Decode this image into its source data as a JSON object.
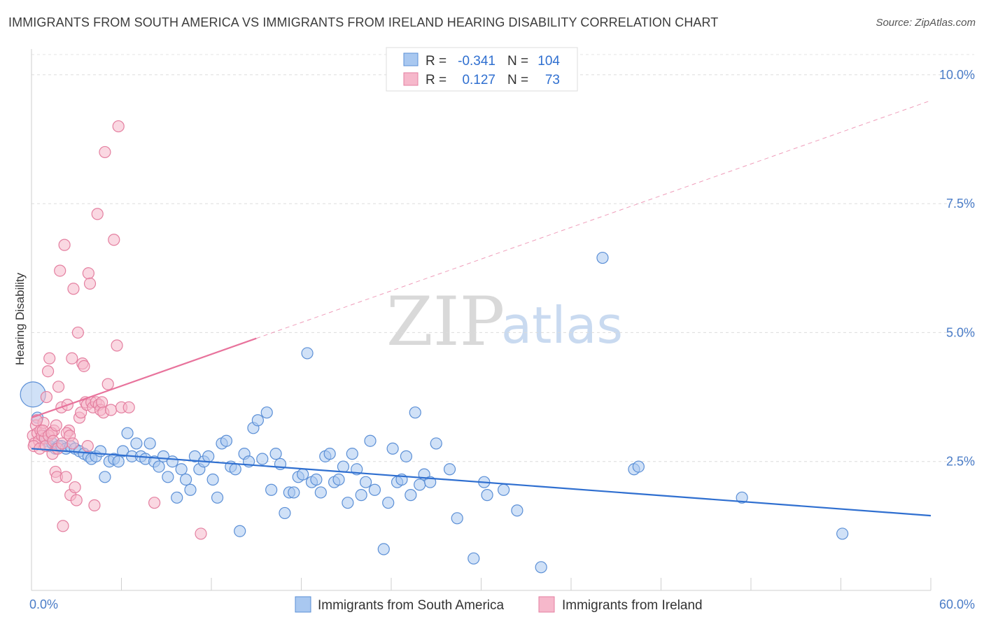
{
  "title": "IMMIGRANTS FROM SOUTH AMERICA VS IMMIGRANTS FROM IRELAND HEARING DISABILITY CORRELATION CHART",
  "source": "Source: ZipAtlas.com",
  "watermark": {
    "zip": "ZIP",
    "atlas": "atlas"
  },
  "stats": {
    "rows": [
      {
        "r_label": "R =",
        "r_value": "-0.341",
        "n_label": "N =",
        "n_value": "104",
        "color": "#a9c8f0",
        "border": "#5b8fd6"
      },
      {
        "r_label": "R =",
        "r_value": "0.127",
        "n_label": "N =",
        "n_value": "73",
        "color": "#f6b8cb",
        "border": "#e47fa0"
      }
    ]
  },
  "chart_data": {
    "type": "scatter",
    "title": "IMMIGRANTS FROM SOUTH AMERICA VS IMMIGRANTS FROM IRELAND HEARING DISABILITY CORRELATION CHART",
    "xlabel": "",
    "ylabel": "Hearing Disability",
    "xlim": [
      0,
      60
    ],
    "ylim": [
      0,
      10.5
    ],
    "x_tick_labels": [
      {
        "value": 0,
        "label": "0.0%"
      },
      {
        "value": 60,
        "label": "60.0%"
      }
    ],
    "y_ticks": [
      {
        "value": 2.5,
        "label": "2.5%"
      },
      {
        "value": 5.0,
        "label": "5.0%"
      },
      {
        "value": 7.5,
        "label": "7.5%"
      },
      {
        "value": 10.0,
        "label": "10.0%"
      }
    ],
    "grid": true,
    "legend_position": "bottom",
    "series": [
      {
        "name": "Immigrants from South America",
        "color": "#a9c8f0",
        "stroke": "#5b8fd6",
        "trend": {
          "x": [
            0,
            60
          ],
          "y": [
            2.75,
            1.45
          ],
          "color": "#2f6fd0"
        },
        "points": [
          [
            0.1,
            3.8
          ],
          [
            0.4,
            3.35
          ],
          [
            0.8,
            3.0
          ],
          [
            1.0,
            2.9
          ],
          [
            1.2,
            2.8
          ],
          [
            1.4,
            2.85
          ],
          [
            1.6,
            2.75
          ],
          [
            1.8,
            2.8
          ],
          [
            2.0,
            2.8
          ],
          [
            2.3,
            2.75
          ],
          [
            2.6,
            2.8
          ],
          [
            2.9,
            2.75
          ],
          [
            3.2,
            2.7
          ],
          [
            3.5,
            2.65
          ],
          [
            3.8,
            2.6
          ],
          [
            4.0,
            2.55
          ],
          [
            4.3,
            2.6
          ],
          [
            4.6,
            2.7
          ],
          [
            4.9,
            2.2
          ],
          [
            5.2,
            2.5
          ],
          [
            5.5,
            2.55
          ],
          [
            5.8,
            2.5
          ],
          [
            6.1,
            2.7
          ],
          [
            6.4,
            3.05
          ],
          [
            6.7,
            2.6
          ],
          [
            7.0,
            2.85
          ],
          [
            7.3,
            2.6
          ],
          [
            7.6,
            2.55
          ],
          [
            7.9,
            2.85
          ],
          [
            8.2,
            2.5
          ],
          [
            8.5,
            2.4
          ],
          [
            8.8,
            2.6
          ],
          [
            9.1,
            2.2
          ],
          [
            9.4,
            2.5
          ],
          [
            9.7,
            1.8
          ],
          [
            10.0,
            2.35
          ],
          [
            10.3,
            2.15
          ],
          [
            10.6,
            1.95
          ],
          [
            10.9,
            2.6
          ],
          [
            11.2,
            2.35
          ],
          [
            11.5,
            2.5
          ],
          [
            11.8,
            2.6
          ],
          [
            12.1,
            2.15
          ],
          [
            12.4,
            1.8
          ],
          [
            12.7,
            2.85
          ],
          [
            13.0,
            2.9
          ],
          [
            13.3,
            2.4
          ],
          [
            13.6,
            2.35
          ],
          [
            13.9,
            1.15
          ],
          [
            14.2,
            2.65
          ],
          [
            14.5,
            2.5
          ],
          [
            14.8,
            3.15
          ],
          [
            15.1,
            3.3
          ],
          [
            15.4,
            2.55
          ],
          [
            15.7,
            3.45
          ],
          [
            16.0,
            1.95
          ],
          [
            16.3,
            2.65
          ],
          [
            16.6,
            2.45
          ],
          [
            16.9,
            1.5
          ],
          [
            17.2,
            1.9
          ],
          [
            17.5,
            1.9
          ],
          [
            17.8,
            2.2
          ],
          [
            18.1,
            2.25
          ],
          [
            18.4,
            4.6
          ],
          [
            18.7,
            2.1
          ],
          [
            19.0,
            2.15
          ],
          [
            19.3,
            1.9
          ],
          [
            19.6,
            2.6
          ],
          [
            19.9,
            2.65
          ],
          [
            20.2,
            2.1
          ],
          [
            20.5,
            2.15
          ],
          [
            20.8,
            2.4
          ],
          [
            21.1,
            1.7
          ],
          [
            21.4,
            2.65
          ],
          [
            21.7,
            2.35
          ],
          [
            22.0,
            1.85
          ],
          [
            22.3,
            2.1
          ],
          [
            22.6,
            2.9
          ],
          [
            22.9,
            1.95
          ],
          [
            23.5,
            0.8
          ],
          [
            23.8,
            1.7
          ],
          [
            24.1,
            2.75
          ],
          [
            24.4,
            2.1
          ],
          [
            24.7,
            2.15
          ],
          [
            25.0,
            2.6
          ],
          [
            25.3,
            1.85
          ],
          [
            25.6,
            3.45
          ],
          [
            25.9,
            2.05
          ],
          [
            26.2,
            2.25
          ],
          [
            26.6,
            2.1
          ],
          [
            27.0,
            2.85
          ],
          [
            27.9,
            2.35
          ],
          [
            28.4,
            1.4
          ],
          [
            29.5,
            0.62
          ],
          [
            30.2,
            2.1
          ],
          [
            30.4,
            1.85
          ],
          [
            31.5,
            1.95
          ],
          [
            32.4,
            1.55
          ],
          [
            34.0,
            0.45
          ],
          [
            38.1,
            6.45
          ],
          [
            40.2,
            2.35
          ],
          [
            40.5,
            2.4
          ],
          [
            47.4,
            1.8
          ],
          [
            54.1,
            1.1
          ]
        ]
      },
      {
        "name": "Immigrants from Ireland",
        "color": "#f6b8cb",
        "stroke": "#e47fa0",
        "trend": {
          "x": [
            0,
            60
          ],
          "y": [
            3.35,
            9.5
          ],
          "solid_until_x": 15.0,
          "color": "#e8739c"
        },
        "points": [
          [
            0.1,
            3.0
          ],
          [
            0.2,
            2.85
          ],
          [
            0.3,
            3.2
          ],
          [
            0.4,
            3.05
          ],
          [
            0.5,
            2.9
          ],
          [
            0.6,
            3.1
          ],
          [
            0.7,
            3.0
          ],
          [
            0.8,
            3.25
          ],
          [
            0.9,
            2.95
          ],
          [
            1.0,
            3.75
          ],
          [
            1.1,
            4.25
          ],
          [
            1.2,
            4.5
          ],
          [
            1.3,
            3.05
          ],
          [
            1.4,
            2.65
          ],
          [
            1.5,
            3.1
          ],
          [
            1.6,
            2.3
          ],
          [
            1.7,
            2.2
          ],
          [
            1.8,
            3.95
          ],
          [
            1.9,
            6.2
          ],
          [
            2.0,
            3.55
          ],
          [
            2.1,
            1.25
          ],
          [
            2.2,
            6.7
          ],
          [
            2.3,
            2.2
          ],
          [
            2.4,
            3.6
          ],
          [
            2.5,
            3.1
          ],
          [
            2.6,
            1.85
          ],
          [
            2.7,
            4.5
          ],
          [
            2.8,
            5.85
          ],
          [
            2.9,
            2.0
          ],
          [
            3.0,
            1.75
          ],
          [
            3.1,
            5.0
          ],
          [
            3.2,
            3.35
          ],
          [
            3.3,
            3.45
          ],
          [
            3.4,
            4.4
          ],
          [
            3.5,
            4.35
          ],
          [
            3.6,
            3.65
          ],
          [
            3.7,
            3.6
          ],
          [
            3.8,
            6.15
          ],
          [
            3.9,
            5.95
          ],
          [
            4.0,
            3.65
          ],
          [
            4.1,
            3.55
          ],
          [
            4.2,
            1.65
          ],
          [
            4.3,
            3.65
          ],
          [
            4.4,
            7.3
          ],
          [
            4.5,
            3.6
          ],
          [
            4.6,
            3.5
          ],
          [
            4.7,
            3.65
          ],
          [
            4.8,
            3.45
          ],
          [
            4.9,
            8.5
          ],
          [
            5.1,
            4.0
          ],
          [
            5.3,
            3.5
          ],
          [
            5.5,
            6.8
          ],
          [
            5.7,
            4.75
          ],
          [
            5.8,
            9.0
          ],
          [
            6.0,
            3.55
          ],
          [
            6.5,
            3.55
          ],
          [
            8.2,
            1.7
          ],
          [
            11.3,
            1.1
          ],
          [
            0.15,
            2.8
          ],
          [
            0.35,
            3.3
          ],
          [
            0.55,
            2.75
          ],
          [
            0.75,
            3.1
          ],
          [
            0.95,
            2.8
          ],
          [
            1.15,
            3.0
          ],
          [
            1.35,
            3.05
          ],
          [
            1.45,
            2.9
          ],
          [
            1.65,
            3.2
          ],
          [
            1.75,
            2.75
          ],
          [
            2.05,
            2.85
          ],
          [
            2.35,
            3.05
          ],
          [
            2.55,
            3.0
          ],
          [
            2.75,
            2.85
          ],
          [
            3.75,
            2.8
          ]
        ]
      }
    ]
  }
}
